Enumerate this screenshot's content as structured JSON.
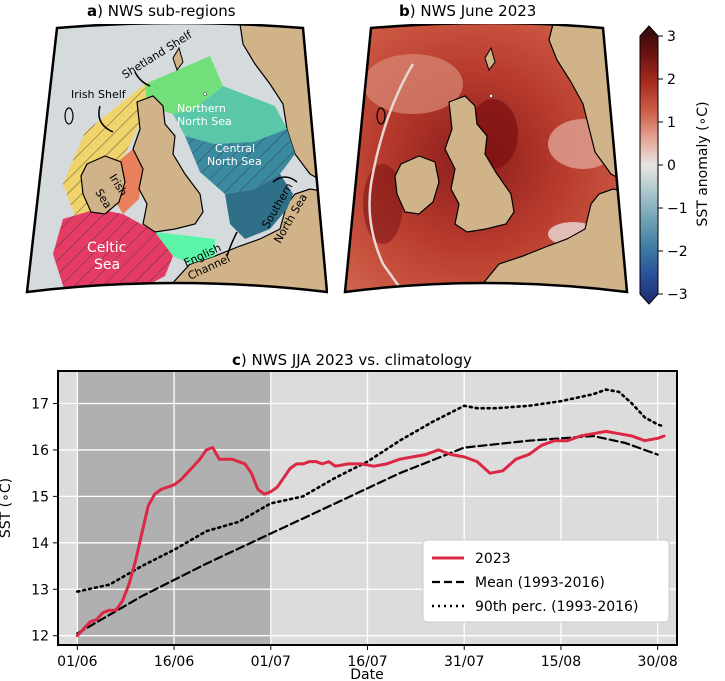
{
  "panels": {
    "a": {
      "letter": "a",
      "title": ") NWS sub-regions"
    },
    "b": {
      "letter": "b",
      "title": ") NWS June 2023"
    },
    "c": {
      "letter": "c",
      "title": ") NWS JJA 2023 vs. climatology"
    }
  },
  "regions": {
    "shetland": "Shetland Shelf",
    "irish_shelf": "Irish Shelf",
    "northern_ns_1": "Northern",
    "northern_ns_2": "North Sea",
    "central_ns_1": "Central",
    "central_ns_2": "North Sea",
    "irish_sea_1": "Irish",
    "irish_sea_2": "Sea",
    "celtic_1": "Celtic",
    "celtic_2": "Sea",
    "english_1": "English",
    "english_2": "Channel",
    "southern_1": "Southern",
    "southern_2": "North Sea"
  },
  "colorbar": {
    "label": "SST anomaly (∘C)",
    "ticks": [
      "3",
      "2",
      "1",
      "0",
      "−1",
      "−2",
      "−3"
    ],
    "colors": [
      "#2a0a0a",
      "#6b1212",
      "#a52a1e",
      "#cc5a45",
      "#e3a091",
      "#e8e4e2",
      "#a9c6cc",
      "#6ea2b3",
      "#3e7aa3",
      "#2a4f9a",
      "#1b2a6b"
    ]
  },
  "legend": [
    "2023",
    "Mean (1993-2016)",
    "90th perc. (1993-2016)"
  ],
  "chart_data": {
    "type": "line",
    "title": "NWS JJA 2023 vs. climatology",
    "xlabel": "Date",
    "ylabel": "SST (∘C)",
    "ylim": [
      11.8,
      17.7
    ],
    "xlim": [
      -3,
      93
    ],
    "x_ticks": [
      {
        "day": 0,
        "label": "01/06"
      },
      {
        "day": 15,
        "label": "16/06"
      },
      {
        "day": 30,
        "label": "01/07"
      },
      {
        "day": 45,
        "label": "16/07"
      },
      {
        "day": 60,
        "label": "31/07"
      },
      {
        "day": 75,
        "label": "15/08"
      },
      {
        "day": 90,
        "label": "30/08"
      }
    ],
    "y_ticks": [
      "12",
      "13",
      "14",
      "15",
      "16",
      "17"
    ],
    "shaded_period_days": [
      0,
      30
    ],
    "series": [
      {
        "name": "2023",
        "color": "#dc2845",
        "style": "solid",
        "x": [
          0,
          1,
          2,
          3,
          4,
          5,
          6,
          7,
          8,
          9,
          10,
          11,
          12,
          13,
          14,
          15,
          16,
          17,
          18,
          19,
          20,
          21,
          22,
          23,
          24,
          25,
          26,
          27,
          28,
          29,
          30,
          31,
          32,
          33,
          34,
          35,
          36,
          37,
          38,
          39,
          40,
          42,
          44,
          46,
          48,
          50,
          52,
          54,
          56,
          58,
          60,
          62,
          64,
          66,
          68,
          70,
          72,
          74,
          76,
          78,
          80,
          82,
          84,
          86,
          88,
          90,
          91
        ],
        "y": [
          12.0,
          12.15,
          12.3,
          12.35,
          12.5,
          12.55,
          12.55,
          12.75,
          13.1,
          13.6,
          14.2,
          14.8,
          15.05,
          15.15,
          15.2,
          15.25,
          15.35,
          15.5,
          15.65,
          15.8,
          16.0,
          16.05,
          15.8,
          15.8,
          15.8,
          15.75,
          15.7,
          15.5,
          15.15,
          15.05,
          15.1,
          15.2,
          15.4,
          15.6,
          15.7,
          15.7,
          15.75,
          15.75,
          15.7,
          15.75,
          15.65,
          15.7,
          15.7,
          15.65,
          15.7,
          15.8,
          15.85,
          15.9,
          16.0,
          15.9,
          15.85,
          15.75,
          15.5,
          15.55,
          15.8,
          15.9,
          16.1,
          16.2,
          16.2,
          16.3,
          16.35,
          16.4,
          16.35,
          16.3,
          16.2,
          16.25,
          16.3
        ]
      },
      {
        "name": "Mean (1993-2016)",
        "color": "#000000",
        "style": "dashed",
        "x": [
          0,
          10,
          20,
          30,
          40,
          50,
          60,
          70,
          80,
          85,
          90
        ],
        "y": [
          12.05,
          12.85,
          13.55,
          14.2,
          14.85,
          15.5,
          16.05,
          16.2,
          16.3,
          16.15,
          15.9
        ]
      },
      {
        "name": "90th perc. (1993-2016)",
        "color": "#000000",
        "style": "dotted",
        "x": [
          0,
          5,
          10,
          15,
          20,
          25,
          30,
          35,
          40,
          45,
          50,
          55,
          60,
          62,
          65,
          70,
          75,
          80,
          82,
          84,
          86,
          88,
          90,
          91
        ],
        "y": [
          12.95,
          13.1,
          13.5,
          13.85,
          14.25,
          14.45,
          14.85,
          15.0,
          15.4,
          15.75,
          16.2,
          16.6,
          16.95,
          16.9,
          16.9,
          16.95,
          17.05,
          17.2,
          17.3,
          17.25,
          17.0,
          16.7,
          16.55,
          16.5
        ]
      }
    ]
  }
}
